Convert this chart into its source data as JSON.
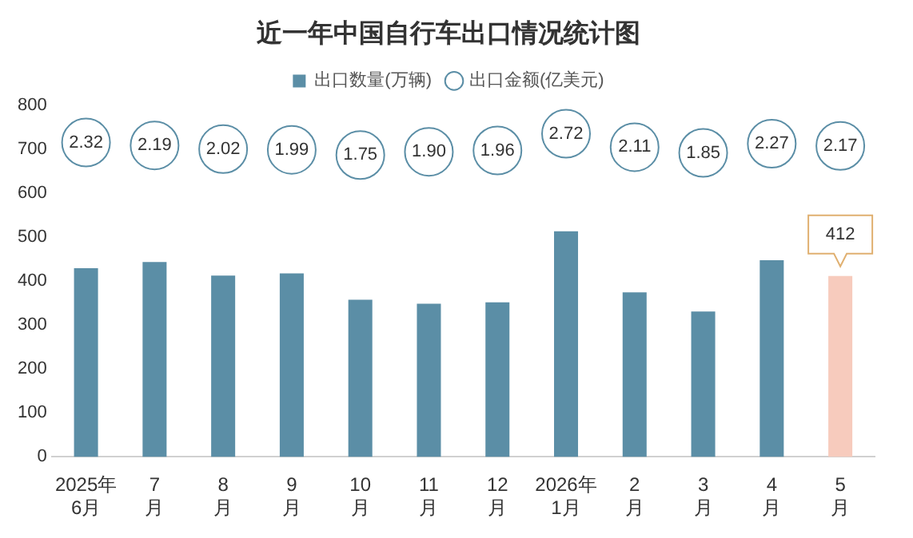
{
  "chart_data": {
    "type": "bar",
    "title": "近一年中国自行车出口情况统计图",
    "categories": [
      "2025年\n6月",
      "7\n月",
      "8\n月",
      "9\n月",
      "10\n月",
      "11\n月",
      "12\n月",
      "2026年\n1月",
      "2\n月",
      "3\n月",
      "4\n月",
      "5\n月"
    ],
    "series": [
      {
        "name": "出口数量(万辆)",
        "color": "#5b8ea6",
        "colors": [
          "#5b8ea6",
          "#5b8ea6",
          "#5b8ea6",
          "#5b8ea6",
          "#5b8ea6",
          "#5b8ea6",
          "#5b8ea6",
          "#5b8ea6",
          "#5b8ea6",
          "#5b8ea6",
          "#5b8ea6",
          "#f7cbbd"
        ],
        "values": [
          430,
          444,
          413,
          418,
          358,
          349,
          352,
          514,
          375,
          331,
          448,
          412
        ],
        "value_labels": [
          null,
          null,
          null,
          null,
          null,
          null,
          null,
          null,
          null,
          null,
          null,
          "412"
        ]
      },
      {
        "name": "出口金额(亿美元)",
        "type": "scatter",
        "axis": "y2",
        "marker": "circle",
        "color": "#5b8ea6",
        "values": [
          2.32,
          2.19,
          2.02,
          1.99,
          1.75,
          1.9,
          1.96,
          2.72,
          2.11,
          1.85,
          2.27,
          2.17
        ],
        "value_labels": [
          "2.32",
          "2.19",
          "2.02",
          "1.99",
          "1.75",
          "1.90",
          "1.96",
          "2.72",
          "2.11",
          "1.85",
          "2.27",
          "2.17"
        ]
      }
    ],
    "ylim": [
      0,
      800
    ],
    "yticks": [
      0,
      100,
      200,
      300,
      400,
      500,
      600,
      700,
      800
    ],
    "grid": false,
    "legend": "top"
  }
}
